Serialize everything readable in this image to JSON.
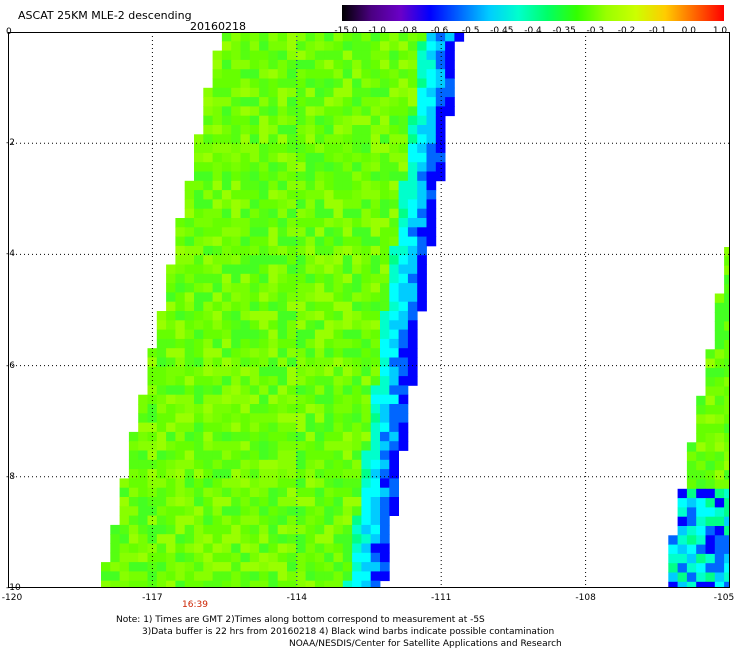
{
  "header": {
    "title": "ASCAT 25KM MLE-2 descending",
    "date": "20160218"
  },
  "colorbar": {
    "labels": [
      "-15.0",
      "-1.0",
      "-0.8",
      "-0.6",
      "-0.5",
      "-0.45",
      "-0.4",
      "-0.35",
      "-0.3",
      "-0.2",
      "-0.1",
      "0.0",
      "1.0"
    ],
    "colors": [
      "#000000",
      "#4b0082",
      "#6a00c8",
      "#0000ff",
      "#0066ff",
      "#00ccff",
      "#00ffcc",
      "#00ff66",
      "#33ff00",
      "#99ff00",
      "#ccff00",
      "#ffcc00",
      "#ff6600",
      "#ff0000"
    ]
  },
  "axes": {
    "x_ticks": [
      "-120",
      "-117",
      "-114",
      "-111",
      "-108",
      "-105"
    ],
    "y_ticks": [
      "0",
      "-2",
      "-4",
      "-6",
      "-8",
      "-10"
    ],
    "xlim": [
      -120,
      -105
    ],
    "ylim": [
      -10,
      0
    ]
  },
  "time_label": "16:39",
  "notes": [
    "Note: 1) Times are GMT 2)Times along bottom correspond to measurement at -5S",
    "3)Data buffer is 22 hrs from 20160218 4) Black wind barbs indicate possible contamination",
    "NOAA/NESDIS/Center for Satellite Applications and Research"
  ],
  "chart_data": {
    "type": "heatmap",
    "title": "ASCAT 25KM MLE-2 descending",
    "variable": "MLE",
    "swaths": [
      {
        "name": "",
        "lat_range": [
          -10,
          0
        ],
        "lon_west_top": -115.5,
        "lon_east_top": -110.7,
        "lon_west_bottom": -118.0,
        "lon_east_bottom": -112.3,
        "dominant_value": "-0.3",
        "min_value": "-0.6"
      },
      {
        "name": "",
        "lat_range": [
          -10,
          -3.7
        ],
        "lon_west_top": -104.9,
        "lon_west_bottom": -106.3,
        "dominant_value": "-0.35",
        "min_value": "-0.6"
      }
    ]
  }
}
